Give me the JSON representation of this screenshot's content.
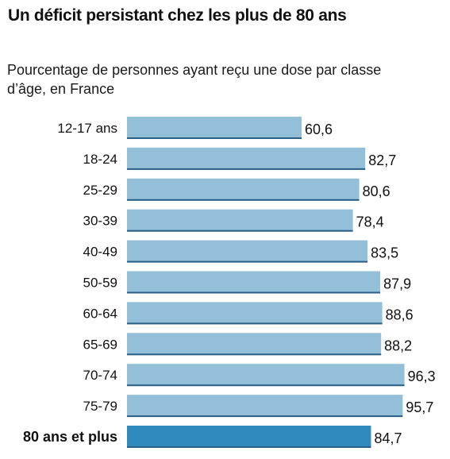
{
  "title": "Un déficit persistant chez les plus de 80 ans",
  "subtitle": "Pourcentage de personnes ayant reçu une dose par classe d’âge, en France",
  "chart_data": {
    "type": "bar",
    "orientation": "horizontal",
    "title": "Un déficit persistant chez les plus de 80 ans",
    "subtitle": "Pourcentage de personnes ayant reçu une dose par classe d’âge, en France",
    "categories": [
      "12-17 ans",
      "18-24",
      "25-29",
      "30-39",
      "40-49",
      "50-59",
      "60-64",
      "65-69",
      "70-74",
      "75-79",
      "80 ans et plus"
    ],
    "values": [
      60.6,
      82.7,
      80.6,
      78.4,
      83.5,
      87.9,
      88.6,
      88.2,
      96.3,
      95.7,
      84.7
    ],
    "value_labels": [
      "60,6",
      "82,7",
      "80,6",
      "78,4",
      "83,5",
      "87,9",
      "88,6",
      "88,2",
      "96,3",
      "95,7",
      "84,7"
    ],
    "highlight_category": "80 ans et plus",
    "xlim": [
      0,
      100
    ],
    "grid": false,
    "colors": {
      "bar": "#93bfd9",
      "bar_edge": "#2a5f86",
      "highlight": "#2f8bbd"
    }
  }
}
